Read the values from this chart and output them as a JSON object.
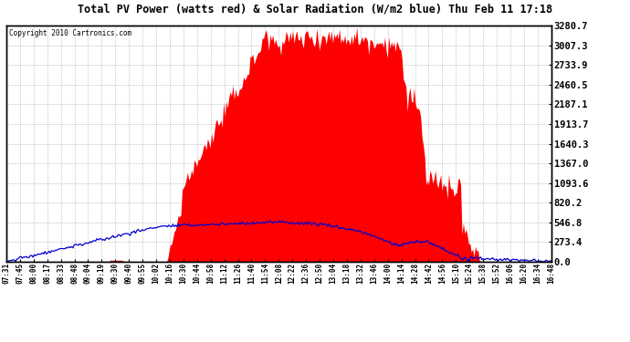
{
  "title": "Total PV Power (watts red) & Solar Radiation (W/m2 blue) Thu Feb 11 17:18",
  "copyright": "Copyright 2010 Cartronics.com",
  "bg_color": "#ffffff",
  "plot_bg_color": "#ffffff",
  "grid_color": "#999999",
  "red_color": "#ff0000",
  "blue_color": "#0000cc",
  "yticks": [
    0.0,
    273.4,
    546.8,
    820.2,
    1093.6,
    1367.0,
    1640.3,
    1913.7,
    2187.1,
    2460.5,
    2733.9,
    3007.3,
    3280.7
  ],
  "ytick_labels": [
    "0.0",
    "273.4",
    "546.8",
    "820.2",
    "1093.6",
    "1367.0",
    "1640.3",
    "1913.7",
    "2187.1",
    "2460.5",
    "2733.9",
    "3007.3",
    "3280.7"
  ],
  "ymax": 3280.7,
  "xtick_labels": [
    "07:31",
    "07:45",
    "08:00",
    "08:17",
    "08:33",
    "08:48",
    "09:04",
    "09:19",
    "09:30",
    "09:40",
    "09:55",
    "10:02",
    "10:16",
    "10:30",
    "10:44",
    "10:58",
    "11:12",
    "11:26",
    "11:40",
    "11:54",
    "12:08",
    "12:22",
    "12:36",
    "12:50",
    "13:04",
    "13:18",
    "13:32",
    "13:46",
    "14:00",
    "14:14",
    "14:28",
    "14:42",
    "14:56",
    "15:10",
    "15:24",
    "15:38",
    "15:52",
    "16:06",
    "16:20",
    "16:34",
    "16:48"
  ],
  "n_points": 410,
  "pv_peak": 3280.7,
  "solar_peak": 600
}
